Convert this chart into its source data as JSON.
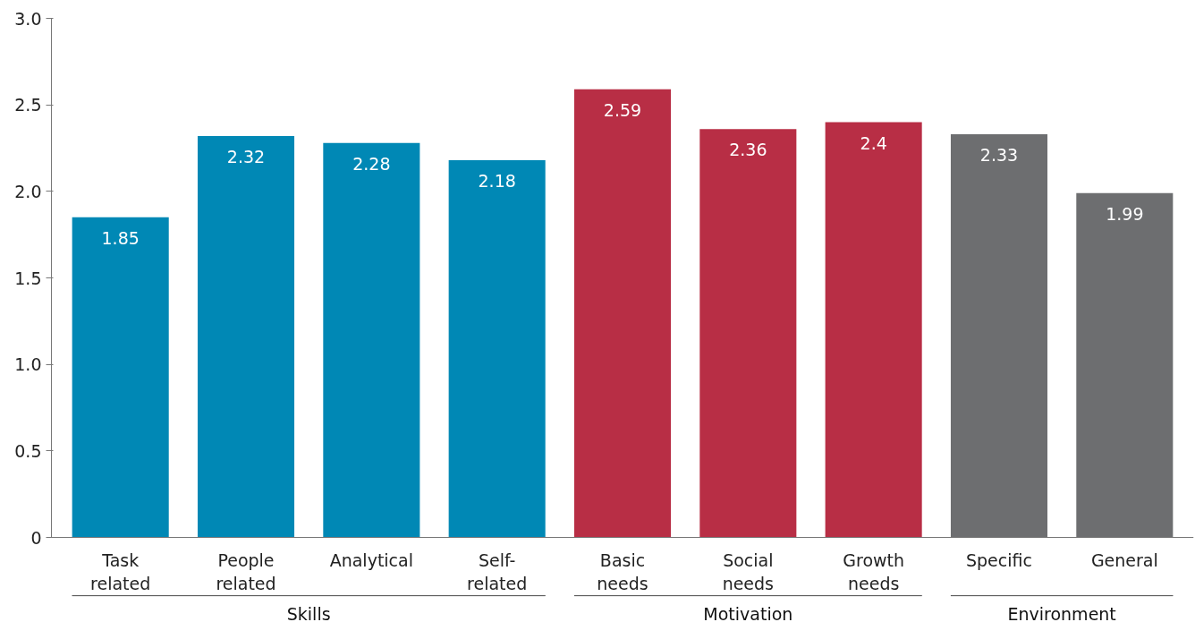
{
  "chart_data": {
    "type": "bar",
    "categories": [
      "Task related",
      "People related",
      "Analytical",
      "Self-related",
      "Basic needs",
      "Social needs",
      "Growth needs",
      "Specific",
      "General"
    ],
    "values": [
      1.85,
      2.32,
      2.28,
      2.18,
      2.59,
      2.36,
      2.4,
      2.33,
      1.99
    ],
    "colors": [
      "#0088b5",
      "#0088b5",
      "#0088b5",
      "#0088b5",
      "#b82e45",
      "#b82e45",
      "#b82e45",
      "#6d6e70",
      "#6d6e70"
    ],
    "ylim": [
      0,
      3.0
    ],
    "yticks": [
      0,
      {
        "value": 0.5,
        "label": "0.5"
      },
      {
        "value": 1.0,
        "label": "1.0"
      },
      {
        "value": 1.5,
        "label": "1.5"
      },
      {
        "value": 2.0,
        "label": "2.0"
      },
      {
        "value": 2.5,
        "label": "2.5"
      },
      {
        "value": 3.0,
        "label": "3.0"
      }
    ],
    "data_labels": true,
    "grid": false,
    "annotations": [
      "Skills",
      "Motivation",
      "Environment"
    ]
  }
}
